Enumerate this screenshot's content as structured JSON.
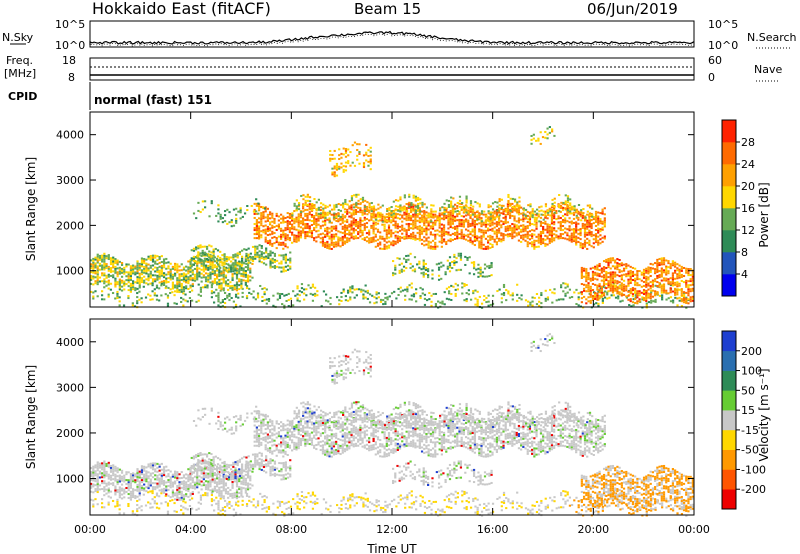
{
  "header": {
    "station": "Hokkaido East (fitACF)",
    "beam": "Beam 15",
    "date": "06/Jun/2019"
  },
  "top_panel": {
    "nsky_label": "N.Sky",
    "nsearch_label": "N.Search",
    "left_ticks": [
      "10^5",
      "10^0"
    ],
    "right_ticks": [
      "10^5",
      "10^0"
    ],
    "freq_label": "Freq.",
    "freq_unit": "[MHz]",
    "freq_ticks": [
      "18",
      "8"
    ],
    "nave_label": "Nave",
    "nave_ticks": [
      "60",
      "0"
    ],
    "cpid_label": "CPID",
    "cpid_value": "normal (fast) 151"
  },
  "chart_data": [
    {
      "type": "heatmap",
      "quantity": "power",
      "ylabel": "Slant Range [km]",
      "yticks": [
        "1000",
        "2000",
        "3000",
        "4000"
      ],
      "ylim": [
        200,
        4500
      ],
      "xlabel": "",
      "colorbar": {
        "label": "Power [dB]",
        "ticks": [
          "4",
          "8",
          "12",
          "16",
          "20",
          "24",
          "28"
        ],
        "range": [
          0,
          32
        ],
        "colors": [
          "#0000ee",
          "#2255bb",
          "#2e8b57",
          "#66aa55",
          "#ffd700",
          "#ffa000",
          "#ff6a00",
          "#ff2200"
        ]
      }
    },
    {
      "type": "heatmap",
      "quantity": "velocity",
      "ylabel": "Slant Range [km]",
      "yticks": [
        "1000",
        "2000",
        "3000",
        "4000"
      ],
      "ylim": [
        200,
        4500
      ],
      "xlabel": "Time UT",
      "xticks": [
        "00:00",
        "04:00",
        "08:00",
        "12:00",
        "16:00",
        "20:00",
        "00:00"
      ],
      "xlim": [
        0,
        24
      ],
      "colorbar": {
        "label": "Velocity [m s⁻¹]",
        "ticks": [
          "200",
          "100",
          "50",
          "15",
          "-15",
          "-50",
          "-100",
          "-200"
        ],
        "colors": [
          "#1e3fd0",
          "#2a6fb0",
          "#2e8b57",
          "#66cc33",
          "#c8c8c8",
          "#ffd700",
          "#ff9900",
          "#ff5500",
          "#ee0000"
        ]
      }
    }
  ]
}
